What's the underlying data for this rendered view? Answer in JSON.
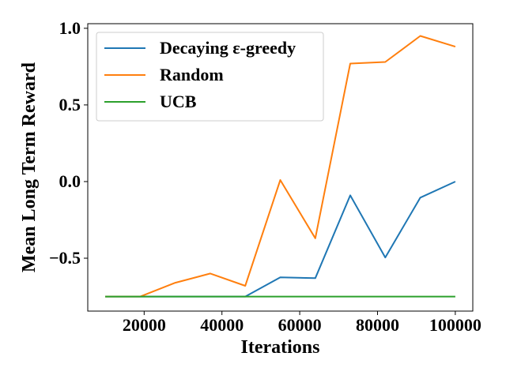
{
  "chart_data": {
    "type": "line",
    "xlabel": "Iterations",
    "ylabel": "Mean Long Term Reward",
    "xlim": [
      5500,
      104500
    ],
    "ylim": [
      -0.845,
      1.03
    ],
    "x_ticks": [
      20000,
      40000,
      60000,
      80000,
      100000
    ],
    "x_tick_labels": [
      "20000",
      "40000",
      "60000",
      "80000",
      "100000"
    ],
    "y_ticks": [
      -0.5,
      0.0,
      0.5,
      1.0
    ],
    "y_tick_labels": [
      "−0.5",
      "0.0",
      "0.5",
      "1.0"
    ],
    "grid": false,
    "legend_position": "upper-left",
    "x": [
      10000,
      19000,
      28000,
      37000,
      46000,
      55000,
      64000,
      73000,
      82000,
      91000,
      100000
    ],
    "series": [
      {
        "name": "Decaying ε-greedy",
        "color": "#1f77b4",
        "values": [
          -0.75,
          -0.75,
          -0.75,
          -0.75,
          -0.75,
          -0.625,
          -0.63,
          -0.09,
          -0.495,
          -0.105,
          0.0
        ]
      },
      {
        "name": "Random",
        "color": "#ff7f0e",
        "values": [
          -0.75,
          -0.75,
          -0.66,
          -0.6,
          -0.68,
          0.01,
          -0.37,
          0.77,
          0.78,
          0.95,
          0.88
        ]
      },
      {
        "name": "UCB",
        "color": "#2ca02c",
        "values": [
          -0.75,
          -0.75,
          -0.75,
          -0.75,
          -0.75,
          -0.75,
          -0.75,
          -0.75,
          -0.75,
          -0.75,
          -0.75
        ]
      }
    ]
  }
}
